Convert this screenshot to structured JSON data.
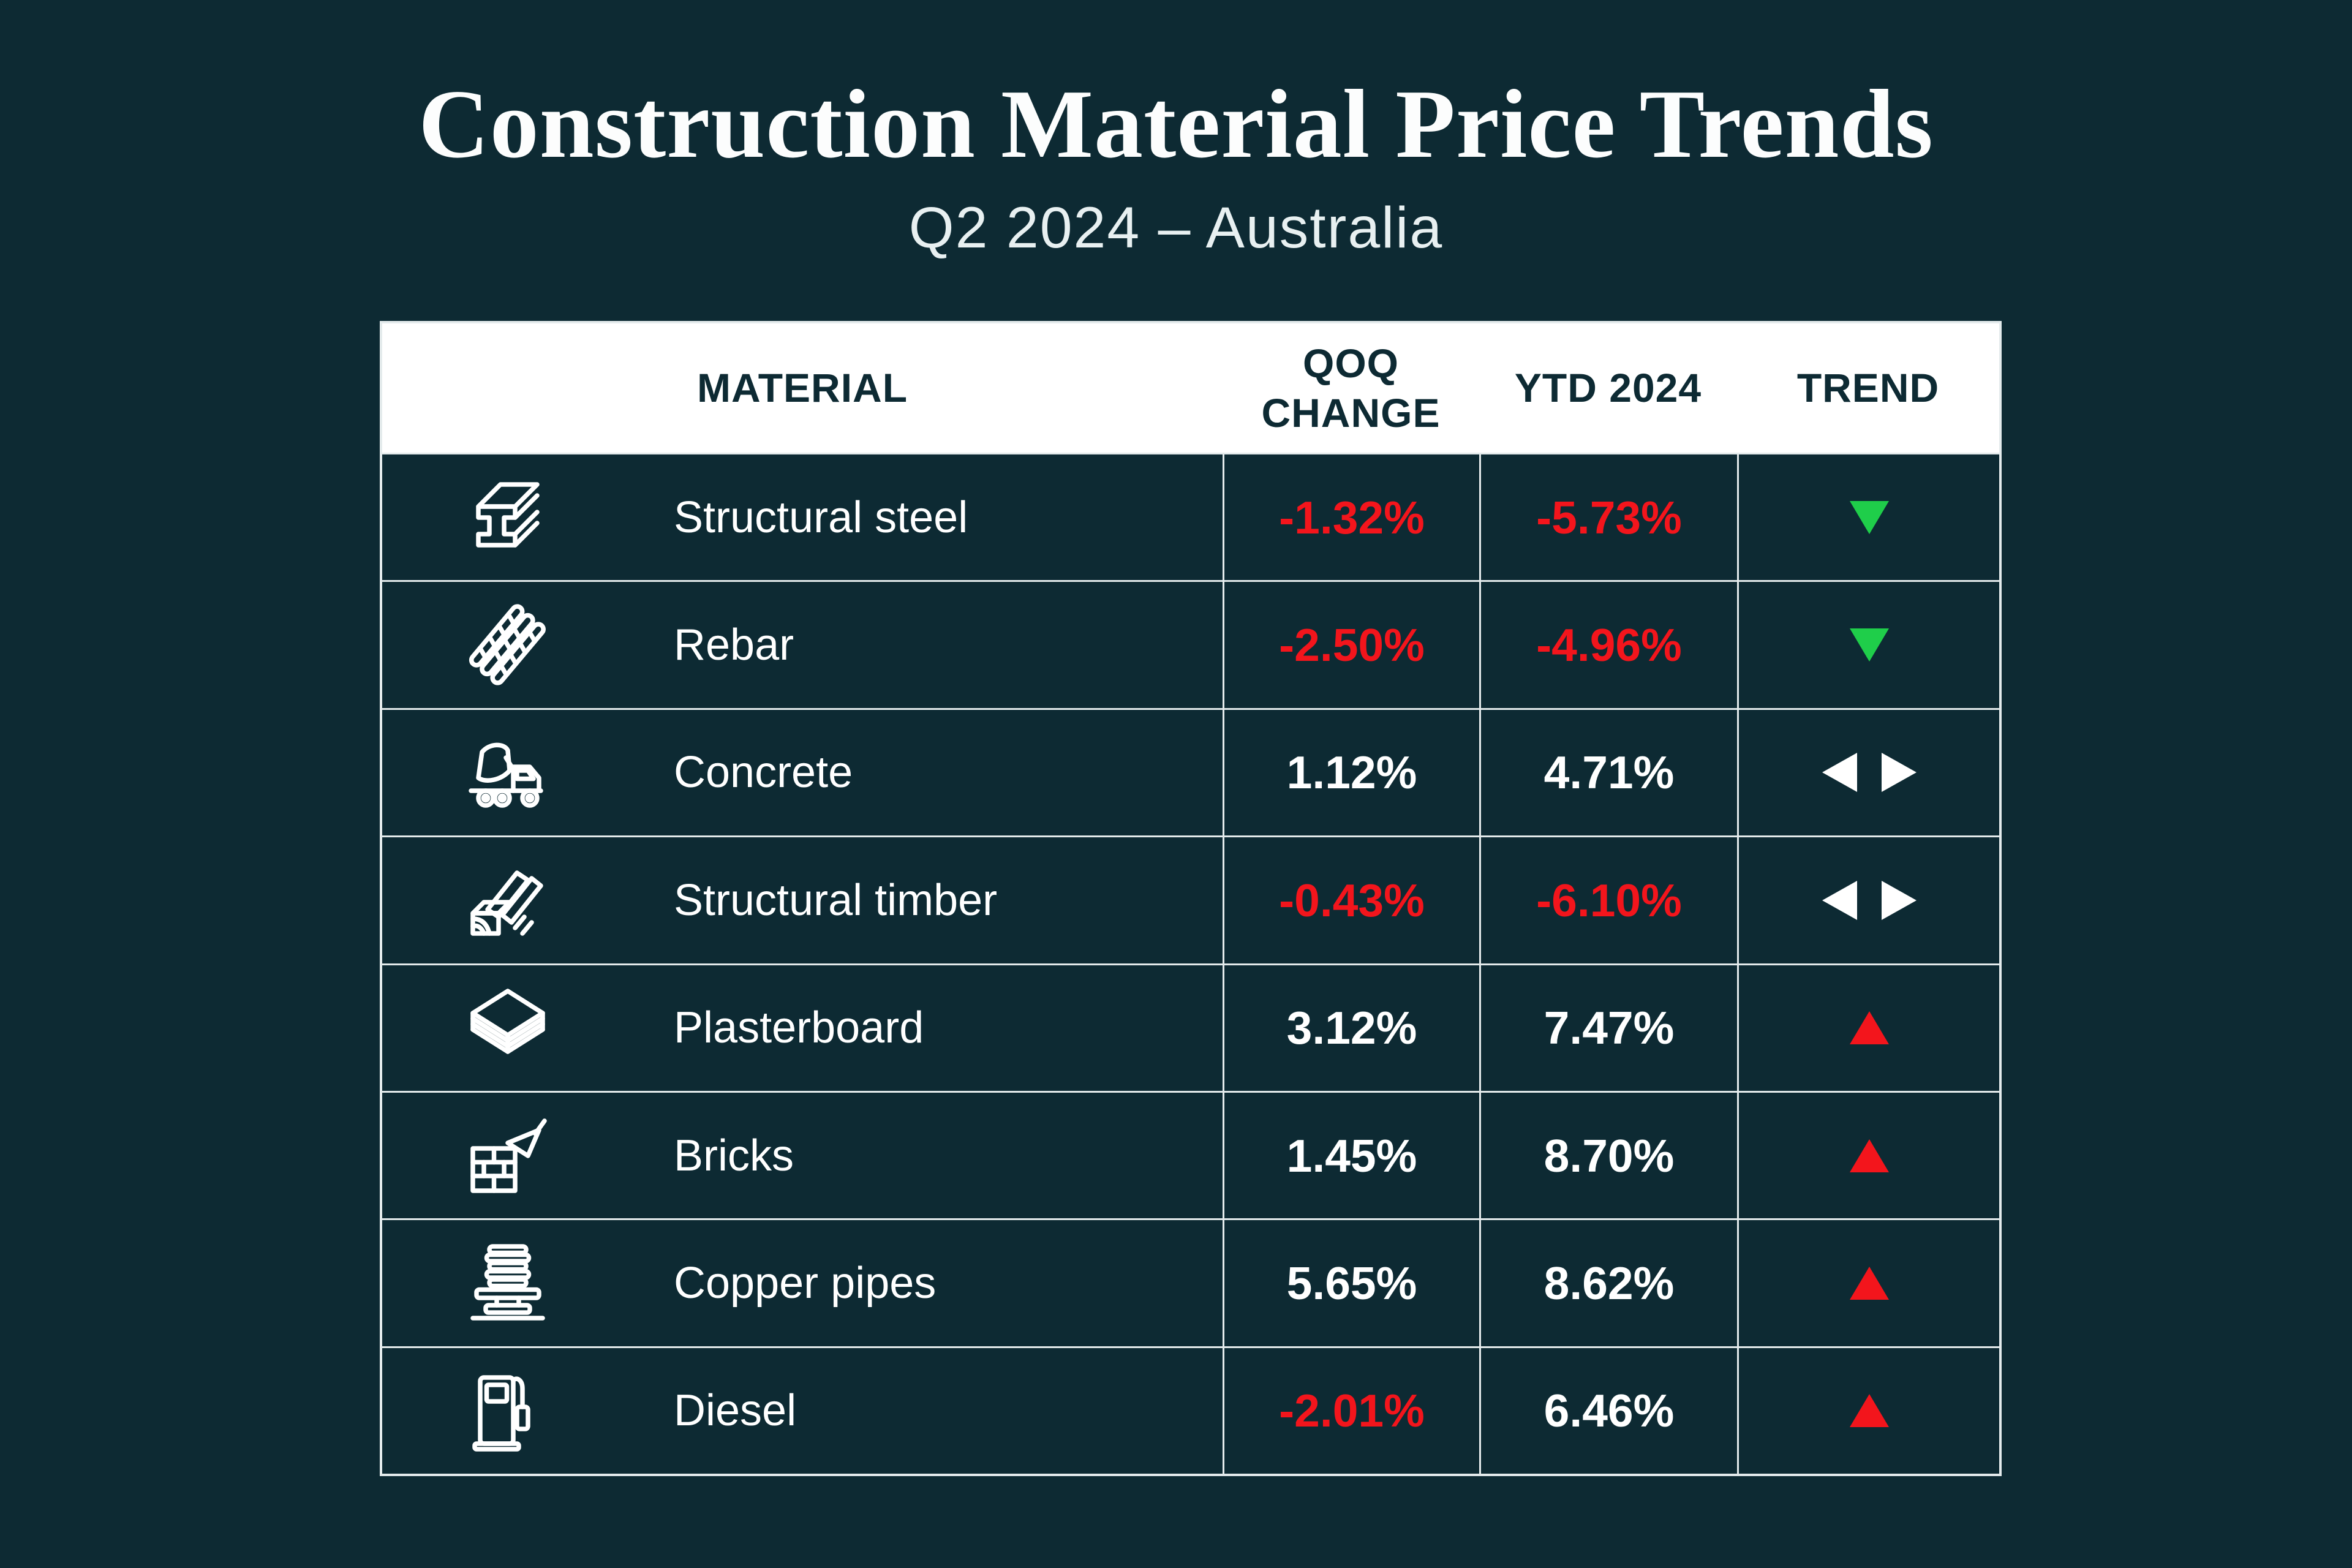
{
  "title": "Construction Material Price Trends",
  "subtitle": "Q2 2024 – Australia",
  "colors": {
    "background": "#0D2A33",
    "grid_line": "#E4EBEC",
    "header_bg": "#FFFFFF",
    "header_text": "#0D2A33",
    "positive_text": "#FFFFFF",
    "negative_text": "#F3151C",
    "trend_up": "#F3151C",
    "trend_down": "#1FCE4A",
    "trend_neutral": "#FFFFFF"
  },
  "chart_data": {
    "type": "table",
    "title": "Construction Material Price Trends",
    "subtitle": "Q2 2024 – Australia",
    "columns": [
      "MATERIAL",
      "QOQ CHANGE",
      "YTD 2024",
      "TREND"
    ],
    "rows": [
      {
        "material": "Structural steel",
        "icon": "steel-beam",
        "qoq_change": "-1.32%",
        "ytd_2024": "-5.73%",
        "trend": "down"
      },
      {
        "material": "Rebar",
        "icon": "rebar",
        "qoq_change": "-2.50%",
        "ytd_2024": "-4.96%",
        "trend": "down"
      },
      {
        "material": "Concrete",
        "icon": "concrete-mixer",
        "qoq_change": "1.12%",
        "ytd_2024": "4.71%",
        "trend": "neutral"
      },
      {
        "material": "Structural timber",
        "icon": "timber",
        "qoq_change": "-0.43%",
        "ytd_2024": "-6.10%",
        "trend": "neutral"
      },
      {
        "material": "Plasterboard",
        "icon": "plasterboard",
        "qoq_change": "3.12%",
        "ytd_2024": "7.47%",
        "trend": "up"
      },
      {
        "material": "Bricks",
        "icon": "bricks",
        "qoq_change": "1.45%",
        "ytd_2024": "8.70%",
        "trend": "up"
      },
      {
        "material": "Copper pipes",
        "icon": "copper-pipes",
        "qoq_change": "5.65%",
        "ytd_2024": "8.62%",
        "trend": "up"
      },
      {
        "material": "Diesel",
        "icon": "diesel",
        "qoq_change": "-2.01%",
        "ytd_2024": "6.46%",
        "trend": "up"
      }
    ]
  }
}
